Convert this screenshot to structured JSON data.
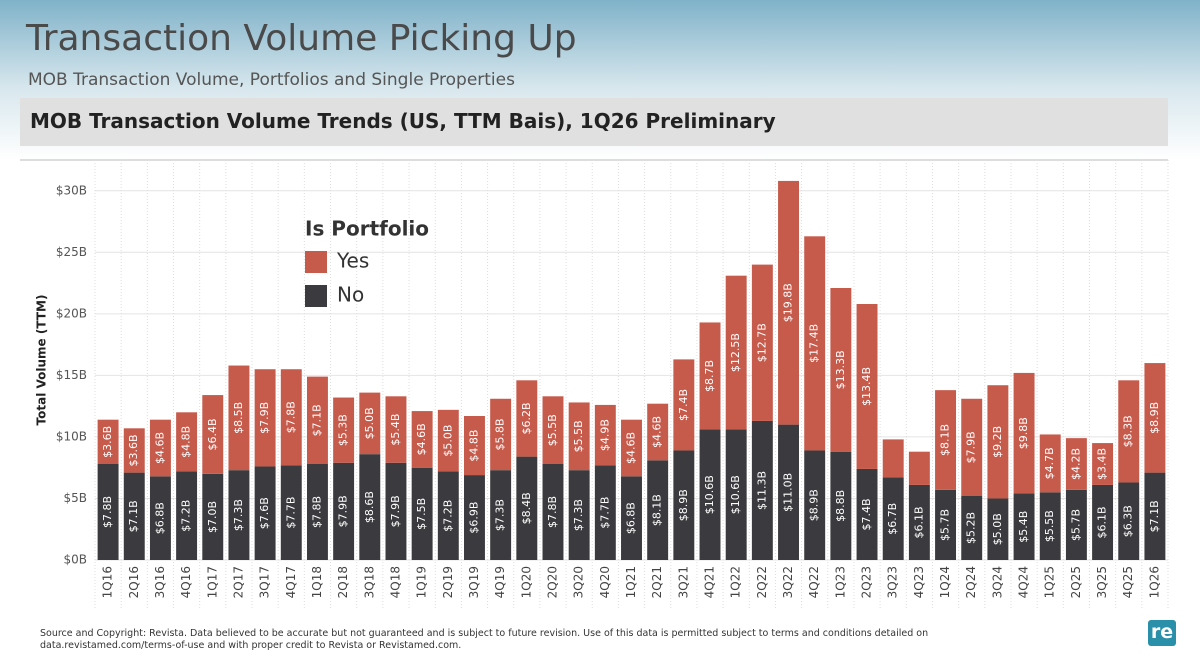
{
  "title": "Transaction Volume Picking Up",
  "subtitle": "MOB Transaction Volume, Portfolios and Single Properties",
  "footer": "Source and Copyright: Revista. Data believed to be accurate but not guaranteed and is subject to future revision. Use of this data is permitted subject to terms and conditions detailed on data.revistamed.com/terms-of-use and with proper credit to Revista or Revistamed.com.",
  "logo": "re",
  "chart_data": {
    "type": "stacked_bar",
    "title": "MOB Transaction Volume Trends (US, TTM Bais), 1Q26 Preliminary",
    "y_label": "Total Volume (TTM)",
    "legend_title": "Is Portfolio",
    "legend_position": "upper-left",
    "grid": true,
    "categories": [
      "1Q16",
      "2Q16",
      "3Q16",
      "4Q16",
      "1Q17",
      "2Q17",
      "3Q17",
      "4Q17",
      "1Q18",
      "2Q18",
      "3Q18",
      "4Q18",
      "1Q19",
      "2Q19",
      "3Q19",
      "4Q19",
      "1Q20",
      "2Q20",
      "3Q20",
      "4Q20",
      "1Q21",
      "2Q21",
      "3Q21",
      "4Q21",
      "1Q22",
      "2Q22",
      "3Q22",
      "4Q22",
      "1Q23",
      "2Q23",
      "3Q23",
      "4Q23",
      "1Q24",
      "2Q24",
      "3Q24",
      "4Q24",
      "1Q25",
      "2Q25",
      "3Q25",
      "4Q25",
      "1Q26"
    ],
    "series": [
      {
        "name": "No",
        "color": "#3b3b3f",
        "values": [
          7.8,
          7.1,
          6.8,
          7.2,
          7.0,
          7.3,
          7.6,
          7.7,
          7.8,
          7.9,
          8.6,
          7.9,
          7.5,
          7.2,
          6.9,
          7.3,
          8.4,
          7.8,
          7.3,
          7.7,
          6.8,
          8.1,
          8.9,
          10.6,
          10.6,
          11.3,
          11.0,
          8.9,
          8.8,
          7.4,
          6.7,
          6.1,
          5.7,
          5.2,
          5.0,
          5.4,
          5.5,
          5.7,
          6.1,
          6.3,
          7.1
        ],
        "value_labels": [
          "$7.8B",
          "$7.1B",
          "$6.8B",
          "$7.2B",
          "$7.0B",
          "$7.3B",
          "$7.6B",
          "$7.7B",
          "$7.8B",
          "$7.9B",
          "$8.6B",
          "$7.9B",
          "$7.5B",
          "$7.2B",
          "$6.9B",
          "$7.3B",
          "$8.4B",
          "$7.8B",
          "$7.3B",
          "$7.7B",
          "$6.8B",
          "$8.1B",
          "$8.9B",
          "$10.6B",
          "$10.6B",
          "$11.3B",
          "$11.0B",
          "$8.9B",
          "$8.8B",
          "$7.4B",
          "$6.7B",
          "$6.1B",
          "$5.7B",
          "$5.2B",
          "$5.0B",
          "$5.4B",
          "$5.5B",
          "$5.7B",
          "$6.1B",
          "$6.3B",
          "$7.1B"
        ]
      },
      {
        "name": "Yes",
        "color": "#c65a4b",
        "values": [
          3.6,
          3.6,
          4.6,
          4.8,
          6.4,
          8.5,
          7.9,
          7.8,
          7.1,
          5.3,
          5.0,
          5.4,
          4.6,
          5.0,
          4.8,
          5.8,
          6.2,
          5.5,
          5.5,
          4.9,
          4.6,
          4.6,
          7.4,
          8.7,
          12.5,
          12.7,
          19.8,
          17.4,
          13.3,
          13.4,
          3.1,
          2.7,
          8.1,
          7.9,
          9.2,
          9.8,
          4.7,
          4.2,
          3.4,
          8.3,
          8.9
        ],
        "value_labels": [
          "$3.6B",
          "$3.6B",
          "$4.6B",
          "$4.8B",
          "$6.4B",
          "$8.5B",
          "$7.9B",
          "$7.8B",
          "$7.1B",
          "$5.3B",
          "$5.0B",
          "$5.4B",
          "$4.6B",
          "$5.0B",
          "$4.8B",
          "$5.8B",
          "$6.2B",
          "$5.5B",
          "$5.5B",
          "$4.9B",
          "$4.6B",
          "$4.6B",
          "$7.4B",
          "$8.7B",
          "$12.5B",
          "$12.7B",
          "$19.8B",
          "$17.4B",
          "$13.3B",
          "$13.4B",
          null,
          null,
          "$8.1B",
          "$7.9B",
          "$9.2B",
          "$9.8B",
          "$4.7B",
          "$4.2B",
          "$3.4B",
          "$8.3B",
          "$8.9B"
        ]
      }
    ],
    "ylim": [
      0,
      32.5
    ],
    "yticks": [
      {
        "value": 0,
        "label": "$0B"
      },
      {
        "value": 5,
        "label": "$5B"
      },
      {
        "value": 10,
        "label": "$10B"
      },
      {
        "value": 15,
        "label": "$15B"
      },
      {
        "value": 20,
        "label": "$20B"
      },
      {
        "value": 25,
        "label": "$25B"
      },
      {
        "value": 30,
        "label": "$30B"
      }
    ]
  }
}
